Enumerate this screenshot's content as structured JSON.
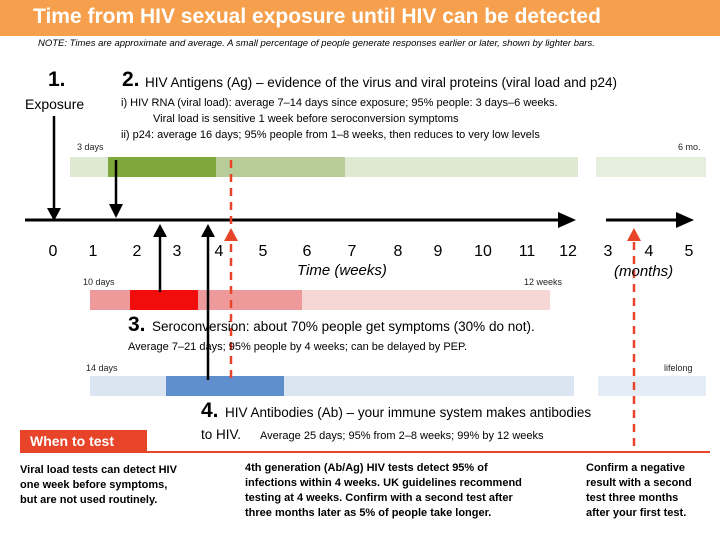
{
  "title": "Time from HIV sexual exposure until HIV can be detected",
  "note": "NOTE: Times are approximate and average. A small percentage of people generate responses earlier or later, shown by lighter bars.",
  "colors": {
    "accent": "#f6a04d",
    "red": "#e8442a",
    "green": "#7ea83c",
    "blue": "#5e8fcc"
  },
  "step1": {
    "num": "1.",
    "label": "Exposure"
  },
  "step2": {
    "num": "2.",
    "heading": "HIV Antigens (Ag) – evidence of the virus and viral proteins (viral load and p24)",
    "line1": "i)   HIV RNA (viral load): average  7–14 days since exposure; 95% people: 3 days–6 weeks.",
    "line2": "Viral load is sensitive 1 week before seroconversion symptoms",
    "line3": "ii)  p24: average 16 days; 95% people from 1–8 weeks, then reduces to very low levels",
    "start": "3 days",
    "end": "6 mo."
  },
  "axis": {
    "weeks": [
      "0",
      "1",
      "2",
      "3",
      "4",
      "5",
      "6",
      "7",
      "8",
      "9",
      "10",
      "11",
      "12"
    ],
    "months": [
      "3",
      "4",
      "5"
    ],
    "weeks_label": "Time (weeks)",
    "months_label": "(months)"
  },
  "step3": {
    "num": "3.",
    "heading": "Seroconversion: about 70% people get symptoms (30% do not).",
    "detail": "Average 7–21 days; 95% people by 4 weeks; can be delayed by PEP.",
    "start": "10 days",
    "end": "12 weeks"
  },
  "step4": {
    "num": "4.",
    "heading": "HIV Antibodies (Ab) – your immune system makes antibodies",
    "heading2": "to HIV.",
    "detail": "Average 25 days; 95% from 2–8 weeks; 99% by 12 weeks",
    "start": "14 days",
    "end": "lifelong"
  },
  "when": {
    "label": "When to test",
    "col1": [
      "Viral load tests can detect HIV",
      "one week before symptoms,",
      "but are not used routinely."
    ],
    "col2": [
      "4th generation (Ab/Ag) HIV tests detect 95% of",
      "infections within 4 weeks. UK guidelines recommend",
      "testing at 4 weeks. Confirm with a second test after",
      "three months later as 5% of people take longer."
    ],
    "col3": [
      "Confirm a negative",
      "result with a second",
      "test three months",
      "after your first test."
    ]
  }
}
